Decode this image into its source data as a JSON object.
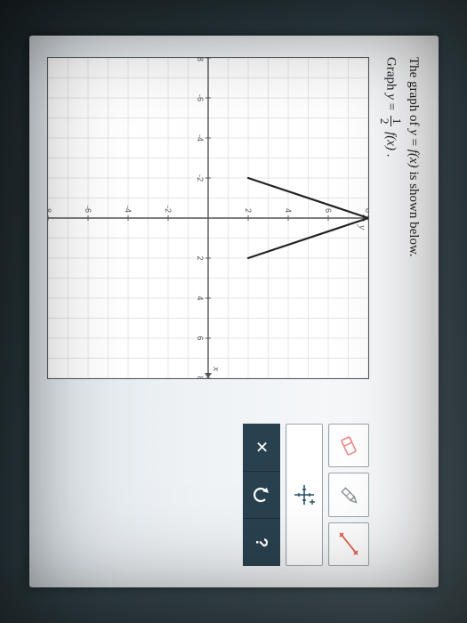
{
  "problem": {
    "line1_prefix": "The graph of ",
    "line1_eq_lhs": "y",
    "line1_eq_rhs": "f(x)",
    "line1_suffix": " is shown below.",
    "line2_prefix": "Graph ",
    "line2_lhs": "y",
    "line2_frac_num": "1",
    "line2_frac_den": "2",
    "line2_fx": "f(x)",
    "line2_period": "."
  },
  "graph": {
    "xmin": -8,
    "xmax": 8,
    "ymin": -8,
    "ymax": 8,
    "tick_step": 2,
    "grid_color": "#d7dde2",
    "axis_color": "#555",
    "tick_label_color": "#555",
    "tick_fontsize": 9,
    "axis_label_y": "y",
    "axis_label_x": "x",
    "curve": {
      "type": "polyline",
      "points": [
        [
          -2,
          2
        ],
        [
          0,
          8
        ],
        [
          2,
          2
        ]
      ],
      "stroke": "#222",
      "stroke_width": 2.2
    },
    "background": "#ffffff"
  },
  "tools": {
    "eraser_color": "#f08a8c",
    "pencil_color": "#8a9298",
    "line_end_color": "#e05a4a",
    "grid_stroke": "#28536b",
    "dark_bg": "#29414f",
    "close_label": "✕",
    "undo_label": "↶",
    "help_label": "?"
  },
  "colors": {
    "screen_bg_top": "#fbfbfc",
    "screen_bg_bottom": "#dfe6eb",
    "border": "#555"
  }
}
